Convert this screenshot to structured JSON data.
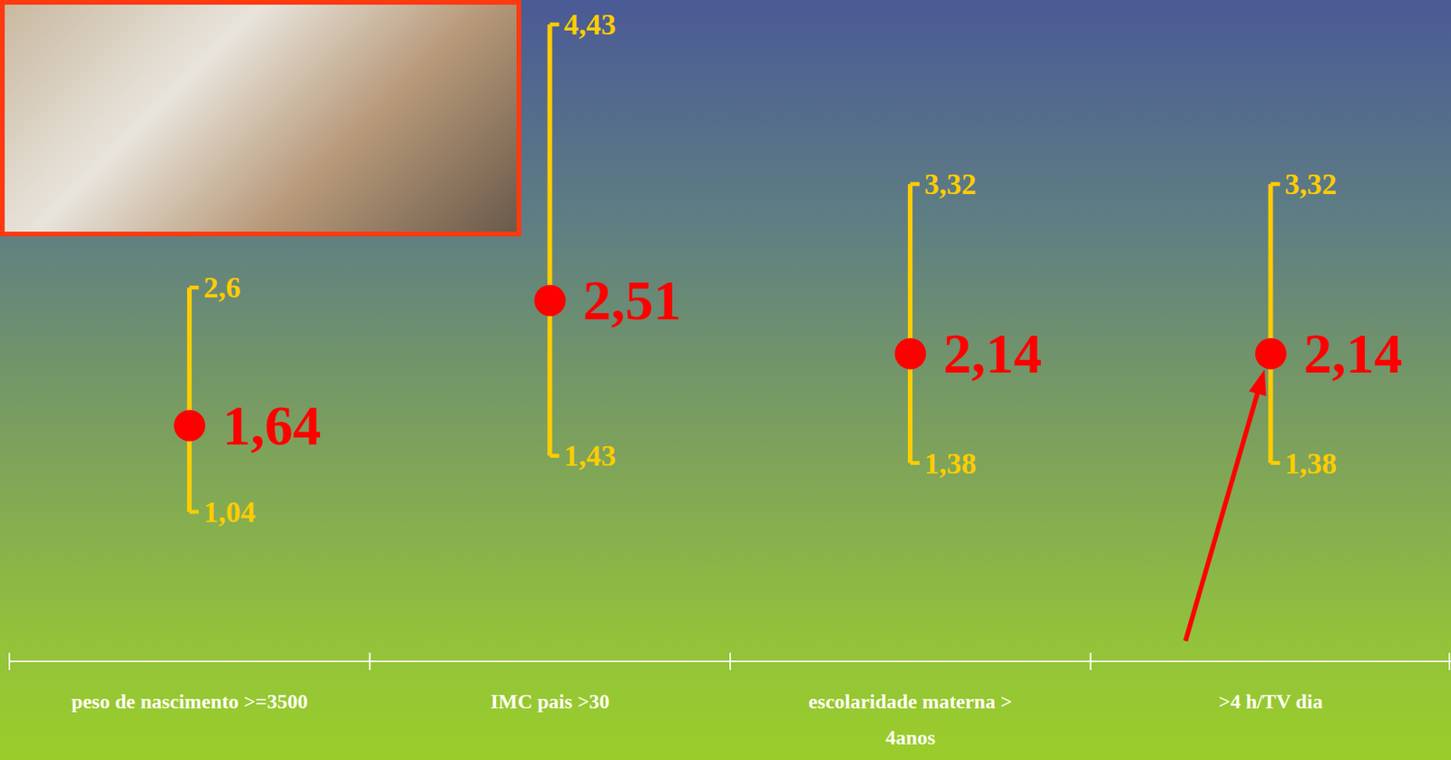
{
  "chart_data": {
    "type": "scatter",
    "categories": [
      "peso de nascimento >=3500",
      "IMC pais >30",
      "escolaridade materna > 4anos",
      ">4 h/TV dia"
    ],
    "values": [
      1.64,
      2.51,
      2.14,
      2.14
    ],
    "value_labels": [
      "1,64",
      "2,51",
      "2,14",
      "2,14"
    ],
    "ci_low": [
      1.04,
      1.43,
      1.38,
      1.38
    ],
    "ci_low_labels": [
      "1,04",
      "1,43",
      "1,38",
      "1,38"
    ],
    "ci_high": [
      2.6,
      4.43,
      3.32,
      3.32
    ],
    "ci_high_labels": [
      "2,6",
      "4,43",
      "3,32",
      "3,32"
    ],
    "ylim": [
      0,
      4.6
    ],
    "data_labels": true,
    "tick_labels": "x",
    "color": "#ff0000"
  }
}
